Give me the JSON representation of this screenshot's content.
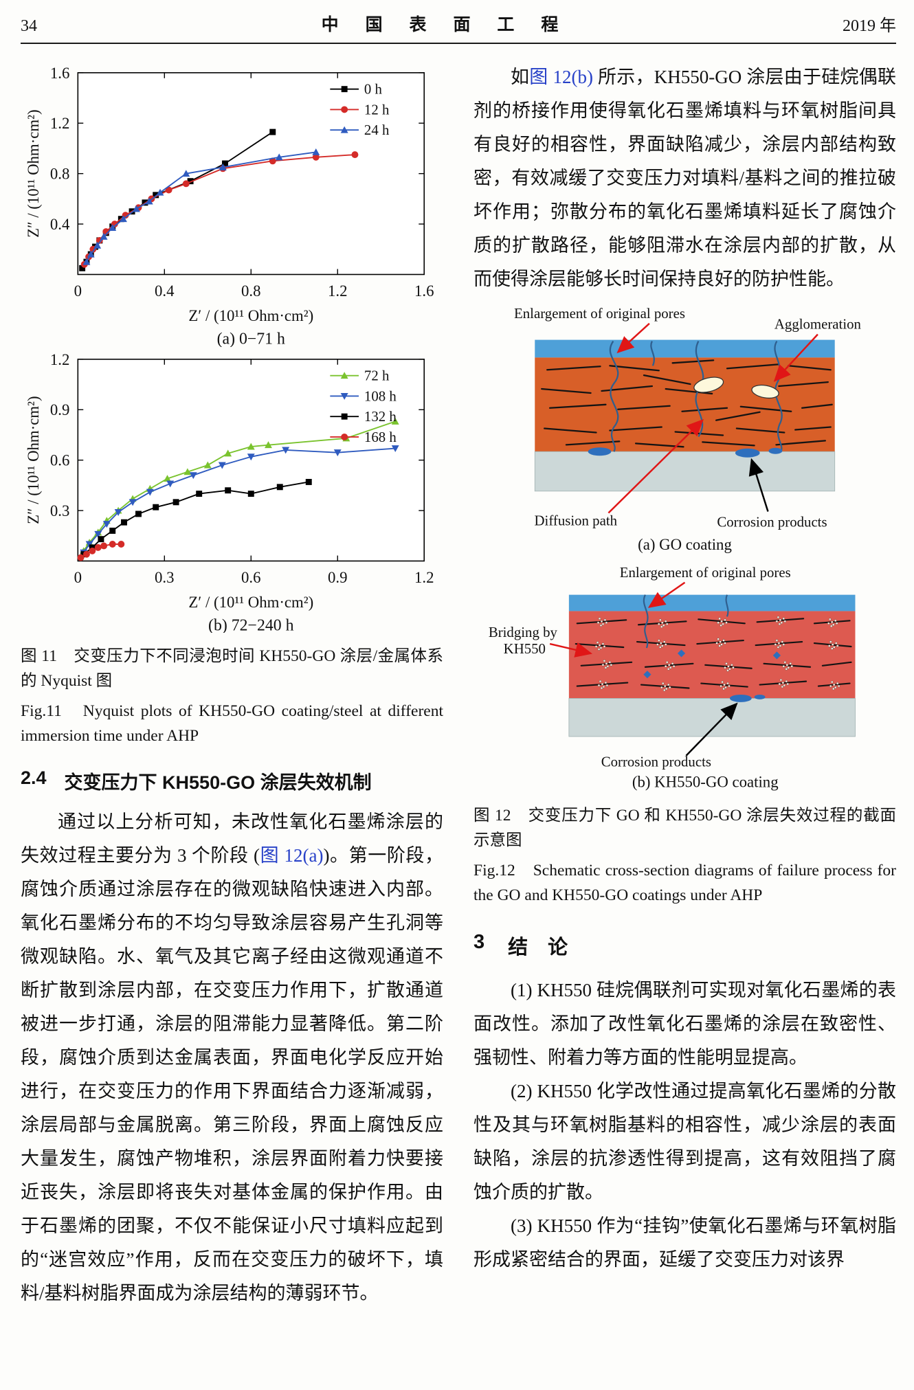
{
  "header": {
    "page_number": "34",
    "journal_title": "中 国 表 面 工 程",
    "year": "2019 年"
  },
  "colors": {
    "link_blue": "#2741c8",
    "water_blue": "#4ea0d8",
    "go_coating_orange": "#d85f28",
    "kh550_coating_red": "#dd5a50",
    "substrate_gray": "#ccd8d8",
    "corrosion_blue": "#2e6fbd",
    "arrow_red": "#e01616"
  },
  "chart_data": [
    {
      "type": "line",
      "caption": "(a) 0−71 h",
      "xlabel": "Z′ / (10¹¹ Ohm·cm²)",
      "ylabel": "Z″ / (10¹¹ Ohm·cm²)",
      "xlim": [
        0,
        1.6
      ],
      "ylim": [
        0,
        1.6
      ],
      "xticks": [
        0,
        0.4,
        0.8,
        1.2,
        1.6
      ],
      "yticks": [
        0,
        0.4,
        0.8,
        1.2,
        1.6
      ],
      "grid": false,
      "legend_position": "top-right",
      "series": [
        {
          "name": "0 h",
          "color": "#000000",
          "marker": "square",
          "points": [
            [
              0.02,
              0.05
            ],
            [
              0.04,
              0.1
            ],
            [
              0.06,
              0.16
            ],
            [
              0.08,
              0.22
            ],
            [
              0.1,
              0.27
            ],
            [
              0.13,
              0.33
            ],
            [
              0.16,
              0.38
            ],
            [
              0.2,
              0.44
            ],
            [
              0.25,
              0.5
            ],
            [
              0.31,
              0.57
            ],
            [
              0.36,
              0.63
            ],
            [
              0.52,
              0.74
            ],
            [
              0.68,
              0.88
            ],
            [
              0.9,
              1.13
            ]
          ]
        },
        {
          "name": "12 h",
          "color": "#d42b28",
          "marker": "circle",
          "points": [
            [
              0.03,
              0.08
            ],
            [
              0.05,
              0.14
            ],
            [
              0.07,
              0.2
            ],
            [
              0.1,
              0.27
            ],
            [
              0.13,
              0.34
            ],
            [
              0.17,
              0.4
            ],
            [
              0.22,
              0.47
            ],
            [
              0.28,
              0.53
            ],
            [
              0.34,
              0.6
            ],
            [
              0.42,
              0.67
            ],
            [
              0.5,
              0.72
            ],
            [
              0.67,
              0.84
            ],
            [
              0.9,
              0.9
            ],
            [
              1.1,
              0.93
            ],
            [
              1.28,
              0.95
            ]
          ]
        },
        {
          "name": "24 h",
          "color": "#2f5bbf",
          "marker": "triangle-up",
          "points": [
            [
              0.04,
              0.1
            ],
            [
              0.06,
              0.16
            ],
            [
              0.09,
              0.23
            ],
            [
              0.12,
              0.3
            ],
            [
              0.16,
              0.37
            ],
            [
              0.21,
              0.44
            ],
            [
              0.27,
              0.52
            ],
            [
              0.33,
              0.58
            ],
            [
              0.38,
              0.65
            ],
            [
              0.5,
              0.8
            ],
            [
              0.67,
              0.85
            ],
            [
              0.93,
              0.93
            ],
            [
              1.1,
              0.97
            ]
          ]
        }
      ]
    },
    {
      "type": "line",
      "caption": "(b) 72−240 h",
      "xlabel": "Z′ / (10¹¹ Ohm·cm²)",
      "ylabel": "Z″ / (10¹¹ Ohm·cm²)",
      "xlim": [
        0,
        1.2
      ],
      "ylim": [
        0,
        1.2
      ],
      "xticks": [
        0,
        0.3,
        0.6,
        0.9,
        1.2
      ],
      "yticks": [
        0,
        0.3,
        0.6,
        0.9,
        1.2
      ],
      "grid": false,
      "legend_position": "top-right",
      "series": [
        {
          "name": "72 h",
          "color": "#7ac32e",
          "marker": "triangle-up",
          "points": [
            [
              0.02,
              0.06
            ],
            [
              0.04,
              0.11
            ],
            [
              0.07,
              0.17
            ],
            [
              0.1,
              0.24
            ],
            [
              0.14,
              0.3
            ],
            [
              0.19,
              0.37
            ],
            [
              0.25,
              0.43
            ],
            [
              0.31,
              0.49
            ],
            [
              0.38,
              0.53
            ],
            [
              0.45,
              0.57
            ],
            [
              0.52,
              0.64
            ],
            [
              0.6,
              0.68
            ],
            [
              0.66,
              0.69
            ],
            [
              0.93,
              0.73
            ],
            [
              1.1,
              0.83
            ]
          ]
        },
        {
          "name": "108 h",
          "color": "#2f5bbf",
          "marker": "triangle-down",
          "points": [
            [
              0.02,
              0.05
            ],
            [
              0.04,
              0.1
            ],
            [
              0.07,
              0.16
            ],
            [
              0.1,
              0.22
            ],
            [
              0.14,
              0.29
            ],
            [
              0.19,
              0.35
            ],
            [
              0.25,
              0.41
            ],
            [
              0.32,
              0.46
            ],
            [
              0.4,
              0.51
            ],
            [
              0.5,
              0.57
            ],
            [
              0.6,
              0.62
            ],
            [
              0.72,
              0.66
            ],
            [
              0.9,
              0.645
            ],
            [
              1.1,
              0.67
            ]
          ]
        },
        {
          "name": "132 h",
          "color": "#000000",
          "marker": "square",
          "points": [
            [
              0.02,
              0.04
            ],
            [
              0.05,
              0.08
            ],
            [
              0.08,
              0.13
            ],
            [
              0.12,
              0.18
            ],
            [
              0.16,
              0.23
            ],
            [
              0.21,
              0.28
            ],
            [
              0.27,
              0.32
            ],
            [
              0.34,
              0.35
            ],
            [
              0.42,
              0.4
            ],
            [
              0.52,
              0.42
            ],
            [
              0.6,
              0.4
            ],
            [
              0.7,
              0.44
            ],
            [
              0.8,
              0.47
            ]
          ]
        },
        {
          "name": "168 h",
          "color": "#d42b28",
          "marker": "circle",
          "points": [
            [
              0.01,
              0.02
            ],
            [
              0.03,
              0.04
            ],
            [
              0.05,
              0.06
            ],
            [
              0.07,
              0.08
            ],
            [
              0.09,
              0.09
            ],
            [
              0.12,
              0.1
            ],
            [
              0.15,
              0.1
            ]
          ]
        }
      ]
    }
  ],
  "fig11": {
    "caption_cn": "图 11　交变压力下不同浸泡时间 KH550-GO 涂层/金属体系的 Nyquist 图",
    "caption_en": "Fig.11　Nyquist plots of KH550-GO coating/steel at different immersion time under AHP"
  },
  "section24": {
    "number": "2.4",
    "title": "交变压力下 KH550-GO 涂层失效机制",
    "para_before_link": "通过以上分析可知，未改性氧化石墨烯涂层的失效过程主要分为 3 个阶段 (",
    "para_link": "图 12(a)",
    "para_after_link": ")。第一阶段，腐蚀介质通过涂层存在的微观缺陷快速进入内部。氧化石墨烯分布的不均匀导致涂层容易产生孔洞等微观缺陷。水、氧气及其它离子经由这微观通道不断扩散到涂层内部，在交变压力作用下，扩散通道被进一步打通，涂层的阻滞能力显著降低。第二阶段，腐蚀介质到达金属表面，界面电化学反应开始进行，在交变压力的作用下界面结合力逐渐减弱，涂层局部与金属脱离。第三阶段，界面上腐蚀反应大量发生，腐蚀产物堆积，涂层界面附着力快要接近丧失，涂层即将丧失对基体金属的保护作用。由于石墨烯的团聚，不仅不能保证小尺寸填料应起到的“迷宫效应”作用，反而在交变压力的破坏下，填料/基料树脂界面成为涂层结构的薄弱环节。"
  },
  "right": {
    "para1_before": "如",
    "para1_link": "图 12(b)",
    "para1_after": " 所示，KH550-GO 涂层由于硅烷偶联剂的桥接作用使得氧化石墨烯填料与环氧树脂间具有良好的相容性，界面缺陷减少，涂层内部结构致密，有效减缓了交变压力对填料/基料之间的推拉破坏作用；弥散分布的氧化石墨烯填料延长了腐蚀介质的扩散路径，能够阻滞水在涂层内部的扩散，从而使得涂层能够长时间保持良好的防护性能。"
  },
  "fig12": {
    "labels": {
      "enlargement_a": "Enlargement of original pores",
      "agglomeration": "Agglomeration",
      "diffusion_path": "Diffusion path",
      "corrosion_a": "Corrosion products",
      "caption_a": "(a) GO coating",
      "enlargement_b": "Enlargement of original pores",
      "bridging_line1": "Bridging by",
      "bridging_line2": "KH550",
      "corrosion_b": "Corrosion products",
      "caption_b": "(b) KH550-GO coating"
    },
    "caption_cn": "图 12　交变压力下 GO 和 KH550-GO 涂层失效过程的截面示意图",
    "caption_en": "Fig.12　Schematic cross-section diagrams of failure process for the GO and KH550-GO coatings under AHP"
  },
  "section3": {
    "number": "3",
    "title": "结　论",
    "items": [
      "(1) KH550 硅烷偶联剂可实现对氧化石墨烯的表面改性。添加了改性氧化石墨烯的涂层在致密性、强韧性、附着力等方面的性能明显提高。",
      "(2) KH550 化学改性通过提高氧化石墨烯的分散性及其与环氧树脂基料的相容性，减少涂层的表面缺陷，涂层的抗渗透性得到提高，这有效阻挡了腐蚀介质的扩散。",
      "(3) KH550 作为“挂钩”使氧化石墨烯与环氧树脂形成紧密结合的界面，延缓了交变压力对该界"
    ]
  }
}
